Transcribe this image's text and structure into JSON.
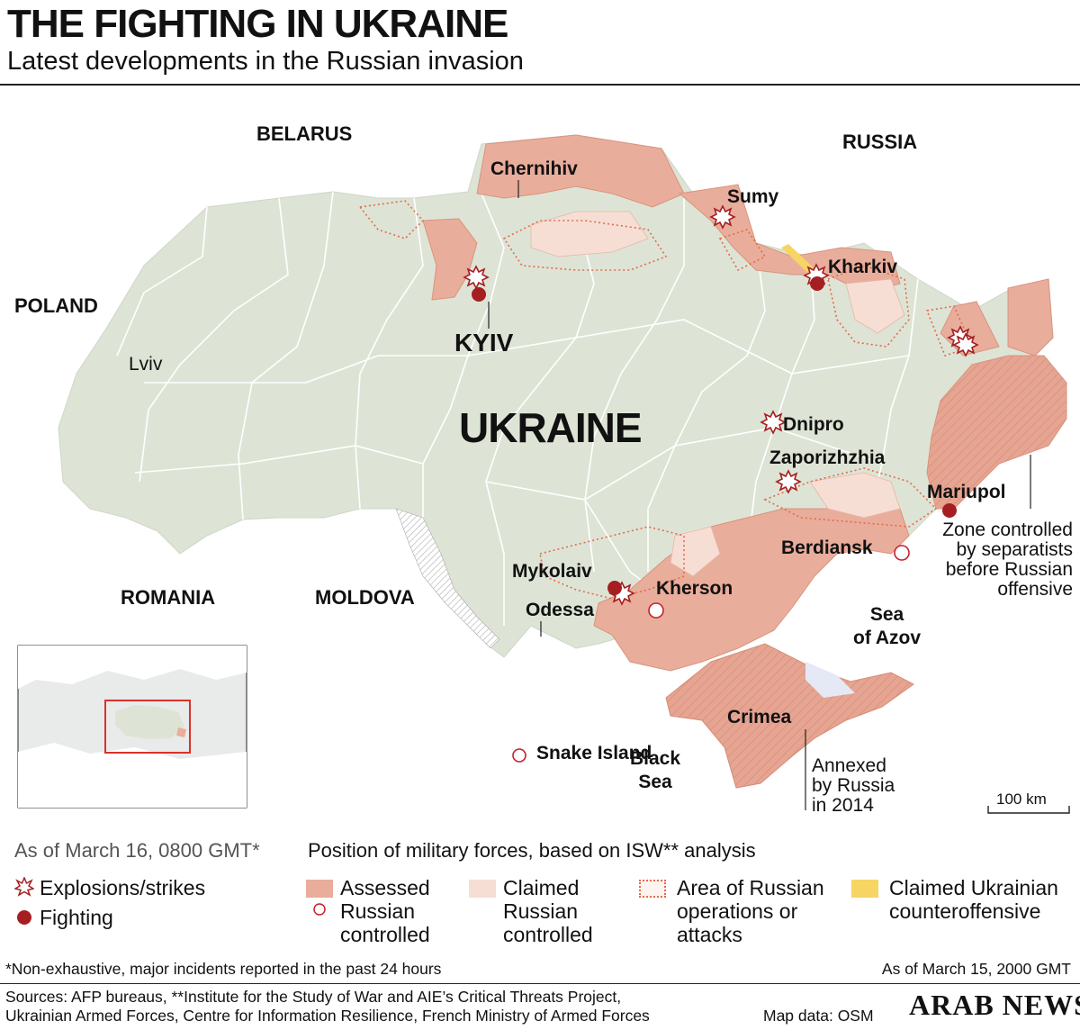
{
  "header": {
    "title": "THE FIGHTING IN UKRAINE",
    "subtitle": "Latest developments in the Russian invasion"
  },
  "map": {
    "countries": {
      "belarus": "BELARUS",
      "russia": "RUSSIA",
      "poland": "POLAND",
      "romania": "ROMANIA",
      "moldova": "MOLDOVA",
      "ukraine": "UKRAINE"
    },
    "capital": "KYIV",
    "cities": {
      "chernihiv": "Chernihiv",
      "sumy": "Sumy",
      "kharkiv": "Kharkiv",
      "lviv": "Lviv",
      "dnipro": "Dnipro",
      "zaporizhzhia": "Zaporizhzhia",
      "mariupol": "Mariupol",
      "berdiansk": "Berdiansk",
      "mykolaiv": "Mykolaiv",
      "kherson": "Kherson",
      "odessa": "Odessa",
      "crimea": "Crimea",
      "snake_island": "Snake Island"
    },
    "seas": {
      "azov_line1": "Sea",
      "azov_line2": "of Azov",
      "black_line1": "Black",
      "black_line2": "Sea"
    },
    "annotations": {
      "separatists": [
        "Zone controlled",
        "by separatists",
        "before Russian",
        "offensive"
      ],
      "crimea": [
        "Annexed",
        "by Russia",
        "in 2014"
      ]
    },
    "scale": "100 km",
    "colors": {
      "land": "#dde4d5",
      "border": "#ffffff",
      "russian_controlled": "#e9ad9b",
      "claimed": "#f6ded4",
      "operations": "#e36a4e",
      "counteroffensive": "#f7d564",
      "fighting": "#a51f22",
      "strike": "#a51f22"
    }
  },
  "legend": {
    "as_of": "As of March 16, 0800 GMT*",
    "positions_title": "Position of military forces, based on ISW** analysis",
    "explosions": "Explosions/strikes",
    "fighting": "Fighting",
    "assessed": [
      "Assessed",
      "Russian",
      "controlled"
    ],
    "claimed": [
      "Claimed",
      "Russian",
      "controlled"
    ],
    "operations": [
      "Area of Russian",
      "operations or",
      "attacks"
    ],
    "counteroffensive": [
      "Claimed Ukrainian",
      "counteroffensive"
    ]
  },
  "footer": {
    "note": "*Non-exhaustive, major incidents reported in the past 24 hours",
    "as_of_isw": "As of March 15, 2000 GMT",
    "sources_line1": "Sources: AFP bureaus, **Institute for the Study of War and AIE’s Critical Threats Project,",
    "sources_line2": "Ukrainian Armed Forces, Centre for Information Resilience, French Ministry of Armed Forces",
    "map_data": "Map data: OSM",
    "brand": "ARAB NEWS"
  }
}
